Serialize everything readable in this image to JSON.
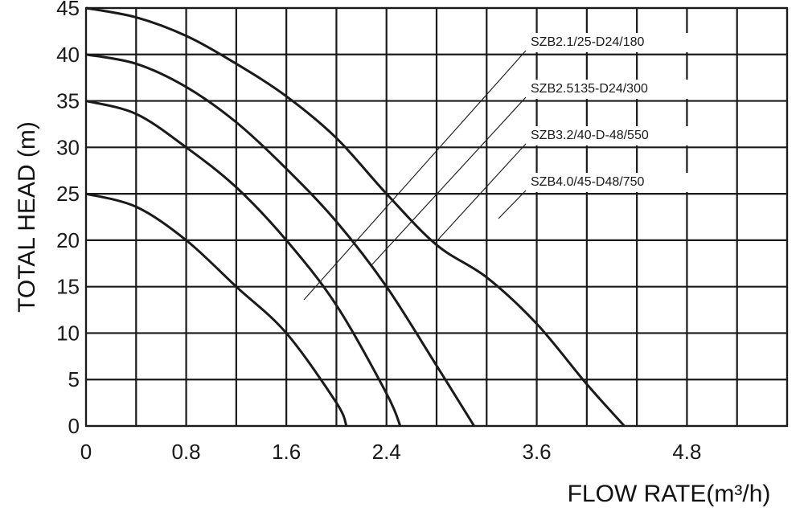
{
  "chart_data": {
    "type": "line",
    "xlabel": "FLOW RATE(m³/h)",
    "ylabel": "TOTAL HEAD (m)",
    "xlim": [
      0,
      5.6
    ],
    "ylim": [
      0,
      45
    ],
    "x_ticks": [
      "0",
      "0.8",
      "1.6",
      "2.4",
      "3.6",
      "4.8"
    ],
    "x_tick_values": [
      0,
      0.8,
      1.6,
      2.4,
      3.6,
      4.8
    ],
    "y_ticks": [
      "0",
      "5",
      "10",
      "15",
      "20",
      "25",
      "30",
      "35",
      "40",
      "45"
    ],
    "y_tick_values": [
      0,
      5,
      10,
      15,
      20,
      25,
      30,
      35,
      40,
      45
    ],
    "x_grid": [
      0,
      0.4,
      0.8,
      1.2,
      1.6,
      2.0,
      2.4,
      2.8,
      3.2,
      3.6,
      4.0,
      4.4,
      4.8,
      5.2,
      5.6
    ],
    "grid": true,
    "legend_position": "top-right, with leader lines",
    "series": [
      {
        "name": "SZB2.1/25-D24/180",
        "x": [
          0,
          0.4,
          0.8,
          1.2,
          1.6,
          2.0,
          2.08
        ],
        "y": [
          25,
          23.6,
          20,
          15,
          10,
          2.5,
          0
        ]
      },
      {
        "name": "SZB2.5135-D24/300",
        "x": [
          0,
          0.4,
          0.8,
          1.2,
          1.6,
          2.0,
          2.4,
          2.51
        ],
        "y": [
          35,
          33.6,
          30,
          25.7,
          20,
          13,
          3.5,
          0
        ]
      },
      {
        "name": "SZB3.2/40-D-48/550",
        "x": [
          0,
          0.4,
          0.8,
          1.2,
          1.6,
          2.0,
          2.4,
          2.8,
          3.1
        ],
        "y": [
          40,
          39,
          36.5,
          32.7,
          27.7,
          22,
          15,
          6.5,
          0
        ]
      },
      {
        "name": "SZB4.0/45-D48/750",
        "x": [
          0,
          0.4,
          0.8,
          1.2,
          1.6,
          2.0,
          2.4,
          2.8,
          3.2,
          3.6,
          4.0,
          4.3
        ],
        "y": [
          45,
          44,
          42,
          39,
          35.5,
          31,
          25,
          19.5,
          16,
          11,
          4.5,
          0
        ]
      }
    ]
  }
}
